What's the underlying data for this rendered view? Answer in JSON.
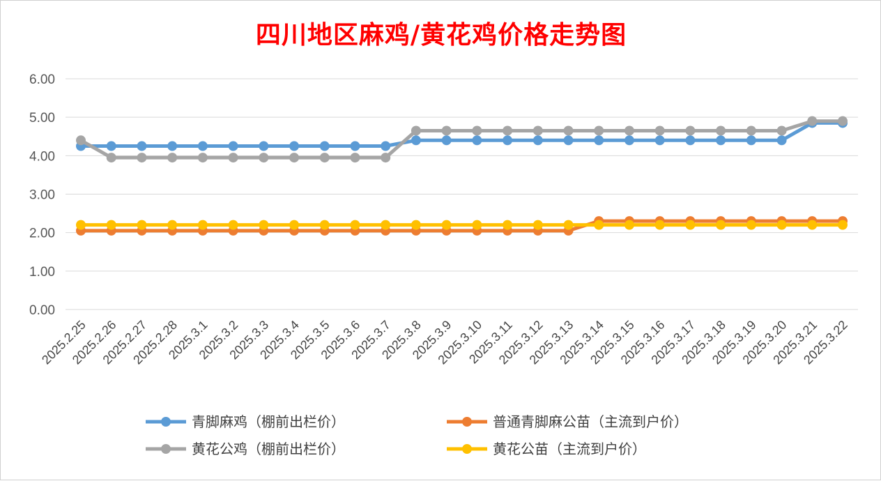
{
  "chart_data": {
    "type": "line",
    "title": "四川地区麻鸡/黄花鸡价格走势图",
    "xlabel": "",
    "ylabel": "",
    "ylim": [
      0,
      6
    ],
    "yticks": [
      "0.00",
      "1.00",
      "2.00",
      "3.00",
      "4.00",
      "5.00",
      "6.00"
    ],
    "grid": true,
    "legend_position": "bottom",
    "categories": [
      "2025.2.25",
      "2025.2.26",
      "2025.2.27",
      "2025.2.28",
      "2025.3.1",
      "2025.3.2",
      "2025.3.3",
      "2025.3.4",
      "2025.3.5",
      "2025.3.6",
      "2025.3.7",
      "2025.3.8",
      "2025.3.9",
      "2025.3.10",
      "2025.3.11",
      "2025.3.12",
      "2025.3.13",
      "2025.3.14",
      "2025.3.15",
      "2025.3.16",
      "2025.3.17",
      "2025.3.18",
      "2025.3.19",
      "2025.3.20",
      "2025.3.21",
      "2025.3.22"
    ],
    "series": [
      {
        "name": "青脚麻鸡（棚前出栏价）",
        "color": "#5b9bd5",
        "values": [
          4.25,
          4.25,
          4.25,
          4.25,
          4.25,
          4.25,
          4.25,
          4.25,
          4.25,
          4.25,
          4.25,
          4.4,
          4.4,
          4.4,
          4.4,
          4.4,
          4.4,
          4.4,
          4.4,
          4.4,
          4.4,
          4.4,
          4.4,
          4.4,
          4.85,
          4.85
        ]
      },
      {
        "name": "普通青脚麻公苗（主流到户价）",
        "color": "#ed7d31",
        "values": [
          2.05,
          2.05,
          2.05,
          2.05,
          2.05,
          2.05,
          2.05,
          2.05,
          2.05,
          2.05,
          2.05,
          2.05,
          2.05,
          2.05,
          2.05,
          2.05,
          2.05,
          2.3,
          2.3,
          2.3,
          2.3,
          2.3,
          2.3,
          2.3,
          2.3,
          2.3
        ]
      },
      {
        "name": "黄花公鸡（棚前出栏价）",
        "color": "#a5a5a5",
        "values": [
          4.4,
          3.95,
          3.95,
          3.95,
          3.95,
          3.95,
          3.95,
          3.95,
          3.95,
          3.95,
          3.95,
          4.65,
          4.65,
          4.65,
          4.65,
          4.65,
          4.65,
          4.65,
          4.65,
          4.65,
          4.65,
          4.65,
          4.65,
          4.65,
          4.9,
          4.9
        ]
      },
      {
        "name": "黄花公苗（主流到户价）",
        "color": "#ffc000",
        "values": [
          2.2,
          2.2,
          2.2,
          2.2,
          2.2,
          2.2,
          2.2,
          2.2,
          2.2,
          2.2,
          2.2,
          2.2,
          2.2,
          2.2,
          2.2,
          2.2,
          2.2,
          2.2,
          2.2,
          2.2,
          2.2,
          2.2,
          2.2,
          2.2,
          2.2,
          2.2
        ]
      }
    ]
  }
}
